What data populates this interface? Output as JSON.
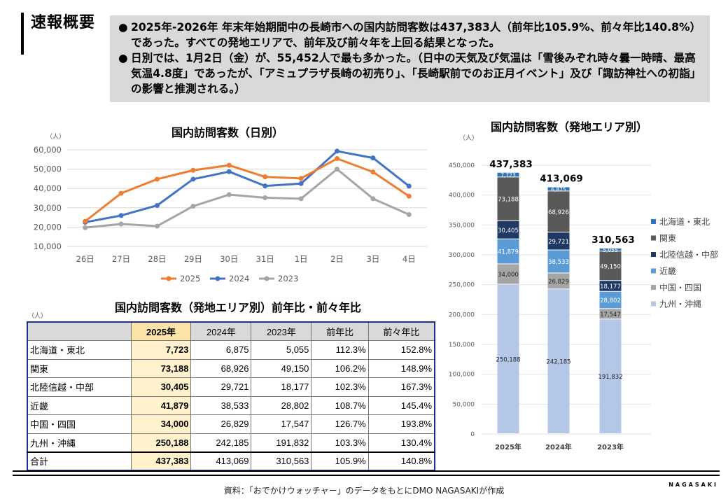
{
  "header": {
    "title": "速報概要",
    "bullets": [
      "2025年-2026年 年末年始期間中の長崎市への国内訪問客数は437,383人（前年比105.9%、前々年比140.8%）であった。すべての発地エリアで、前年及び前々年を上回る結果となった。",
      "日別では、1月2日（金）が、55,452人で最も多かった。（日中の天気及び気温は「雪後みぞれ時々曇一時晴、最高気温4.8度」であったが、「アミュプラザ長崎の初売り」、「長崎駅前でのお正月イベント」及び「諏訪神社への初詣」の影響と推測される。）"
    ]
  },
  "line_chart": {
    "title": "国内訪問客数（日別）",
    "unit": "（人）"
  },
  "bar_chart": {
    "title": "国内訪問客数（発地エリア別）",
    "unit": "（人）"
  },
  "table": {
    "title": "国内訪問客数（発地エリア別）前年比・前々年比",
    "unit": "（人）",
    "headers": [
      "",
      "2025年",
      "2024年",
      "2023年",
      "前年比",
      "前々年比"
    ],
    "rows": [
      [
        "北海道・東北",
        "7,723",
        "6,875",
        "5,055",
        "112.3%",
        "152.8%"
      ],
      [
        "関東",
        "73,188",
        "68,926",
        "49,150",
        "106.2%",
        "148.9%"
      ],
      [
        "北陸信越・中部",
        "30,405",
        "29,721",
        "18,177",
        "102.3%",
        "167.3%"
      ],
      [
        "近畿",
        "41,879",
        "38,533",
        "28,802",
        "108.7%",
        "145.4%"
      ],
      [
        "中国・四国",
        "34,000",
        "26,829",
        "17,547",
        "126.7%",
        "193.8%"
      ],
      [
        "九州・沖縄",
        "250,188",
        "242,185",
        "191,832",
        "103.3%",
        "130.4%"
      ]
    ],
    "total": [
      "合計",
      "437,383",
      "413,069",
      "310,563",
      "105.9%",
      "140.8%"
    ]
  },
  "footer": {
    "source": "資料：「おでかけウォッチャー」のデータをもとにDMO NAGASAKIが作成",
    "brand": "NAGASAKI"
  },
  "chart_data": [
    {
      "type": "line",
      "title": "国内訪問客数（日別）",
      "ylabel": "（人）",
      "categories": [
        "26日",
        "27日",
        "28日",
        "29日",
        "30日",
        "31日",
        "1日",
        "2日",
        "3日",
        "4日"
      ],
      "ylim": [
        10000,
        60000
      ],
      "yticks": [
        "10,000",
        "20,000",
        "30,000",
        "40,000",
        "50,000",
        "60,000"
      ],
      "series": [
        {
          "name": "2025",
          "color": "#ed7d31",
          "values": [
            23000,
            37500,
            44800,
            49400,
            52000,
            46000,
            45200,
            55452,
            48500,
            36000
          ]
        },
        {
          "name": "2024",
          "color": "#4472c4",
          "values": [
            22500,
            26000,
            31200,
            44800,
            48700,
            41300,
            42500,
            59300,
            55800,
            41200
          ]
        },
        {
          "name": "2023",
          "color": "#a5a5a5",
          "values": [
            19700,
            21600,
            20500,
            30800,
            36800,
            35200,
            34700,
            50000,
            34700,
            26500
          ]
        }
      ]
    },
    {
      "type": "bar",
      "stacked": true,
      "title": "国内訪問客数（発地エリア別）",
      "ylabel": "（人）",
      "categories": [
        "2025年",
        "2024年",
        "2023年"
      ],
      "ylim": [
        0,
        450000
      ],
      "yticks": [
        "0",
        "50,000",
        "100,000",
        "150,000",
        "200,000",
        "250,000",
        "300,000",
        "350,000",
        "400,000",
        "450,000"
      ],
      "totals": [
        "437,383",
        "413,069",
        "310,563"
      ],
      "totals_values": [
        437383,
        413069,
        310563
      ],
      "series": [
        {
          "name": "九州・沖縄",
          "color": "#b4c7e7",
          "values": [
            250188,
            242185,
            191832
          ],
          "labels": [
            "250,188",
            "242,185",
            "191,832"
          ]
        },
        {
          "name": "中国・四国",
          "color": "#a5a5a5",
          "values": [
            34000,
            26829,
            17547
          ],
          "labels": [
            "34,000",
            "26,829",
            "17,547"
          ]
        },
        {
          "name": "近畿",
          "color": "#5b9bd5",
          "values": [
            41879,
            38533,
            28802
          ],
          "labels": [
            "41,879",
            "38,533",
            "28,802"
          ]
        },
        {
          "name": "北陸信越・中部",
          "color": "#203864",
          "values": [
            30405,
            29721,
            18177
          ],
          "labels": [
            "30,405",
            "29,721",
            "18,177"
          ]
        },
        {
          "name": "関東",
          "color": "#595959",
          "values": [
            73188,
            68926,
            49150
          ],
          "labels": [
            "73,188",
            "68,926",
            "49,150"
          ]
        },
        {
          "name": "北海道・東北",
          "color": "#2e75b6",
          "values": [
            7723,
            6875,
            5055
          ],
          "labels": [
            "7,723",
            "6,875",
            "5,055"
          ]
        }
      ],
      "legend_order": [
        "北海道・東北",
        "関東",
        "北陸信越・中部",
        "近畿",
        "中国・四国",
        "九州・沖縄"
      ]
    }
  ]
}
